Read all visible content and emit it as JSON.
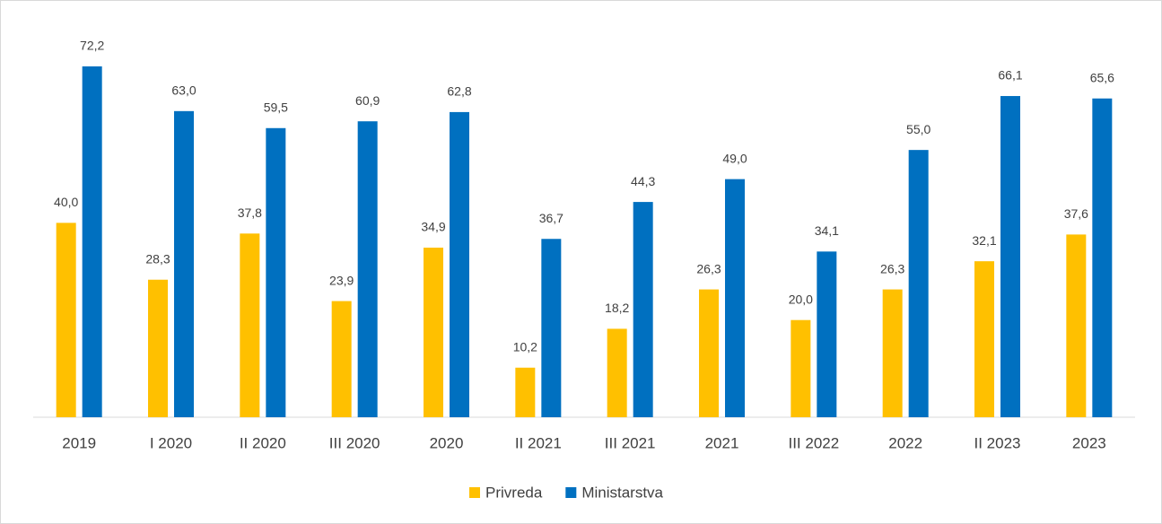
{
  "chart_data": {
    "type": "bar",
    "categories": [
      "2019",
      "I 2020",
      "II 2020",
      "III 2020",
      "2020",
      "II 2021",
      "III 2021",
      "2021",
      "III 2022",
      "2022",
      "II 2023",
      "2023"
    ],
    "series": [
      {
        "name": "Privreda",
        "color": "#FFC000",
        "values": [
          40.0,
          28.3,
          37.8,
          23.9,
          34.9,
          10.2,
          18.2,
          26.3,
          20.0,
          26.3,
          32.1,
          37.6
        ],
        "value_labels": [
          "40,0",
          "28,3",
          "37,8",
          "23,9",
          "34,9",
          "10,2",
          "18,2",
          "26,3",
          "20,0",
          "26,3",
          "32,1",
          "37,6"
        ]
      },
      {
        "name": "Ministarstva",
        "color": "#0070C0",
        "values": [
          72.2,
          63.0,
          59.5,
          60.9,
          62.8,
          36.7,
          44.3,
          49.0,
          34.1,
          55.0,
          66.1,
          65.6
        ],
        "value_labels": [
          "72,2",
          "63,0",
          "59,5",
          "60,9",
          "62,8",
          "36,7",
          "44,3",
          "49,0",
          "34,1",
          "55,0",
          "66,1",
          "65,6"
        ]
      }
    ],
    "legend": "bottom"
  }
}
